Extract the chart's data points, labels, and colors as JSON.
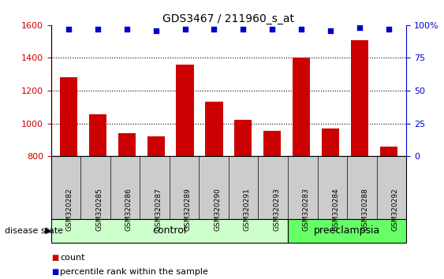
{
  "title": "GDS3467 / 211960_s_at",
  "samples": [
    "GSM320282",
    "GSM320285",
    "GSM320286",
    "GSM320287",
    "GSM320289",
    "GSM320290",
    "GSM320291",
    "GSM320293",
    "GSM320283",
    "GSM320284",
    "GSM320288",
    "GSM320292"
  ],
  "counts": [
    1280,
    1055,
    940,
    920,
    1360,
    1135,
    1020,
    955,
    1400,
    970,
    1510,
    860
  ],
  "percentiles": [
    97,
    97,
    97,
    96,
    97,
    97,
    97,
    97,
    97,
    96,
    98,
    97
  ],
  "groups": [
    "control",
    "control",
    "control",
    "control",
    "control",
    "control",
    "control",
    "control",
    "preeclampsia",
    "preeclampsia",
    "preeclampsia",
    "preeclampsia"
  ],
  "control_color": "#ccffcc",
  "preeclampsia_color": "#66ff66",
  "bar_color": "#cc0000",
  "dot_color": "#0000cc",
  "ylim_left": [
    800,
    1600
  ],
  "ylim_right": [
    0,
    100
  ],
  "yticks_left": [
    800,
    1000,
    1200,
    1400,
    1600
  ],
  "yticks_right": [
    0,
    25,
    50,
    75,
    100
  ],
  "ticklabel_bg": "#cccccc",
  "legend_count_label": "count",
  "legend_percentile_label": "percentile rank within the sample",
  "n_control": 8,
  "n_preeclampsia": 4
}
